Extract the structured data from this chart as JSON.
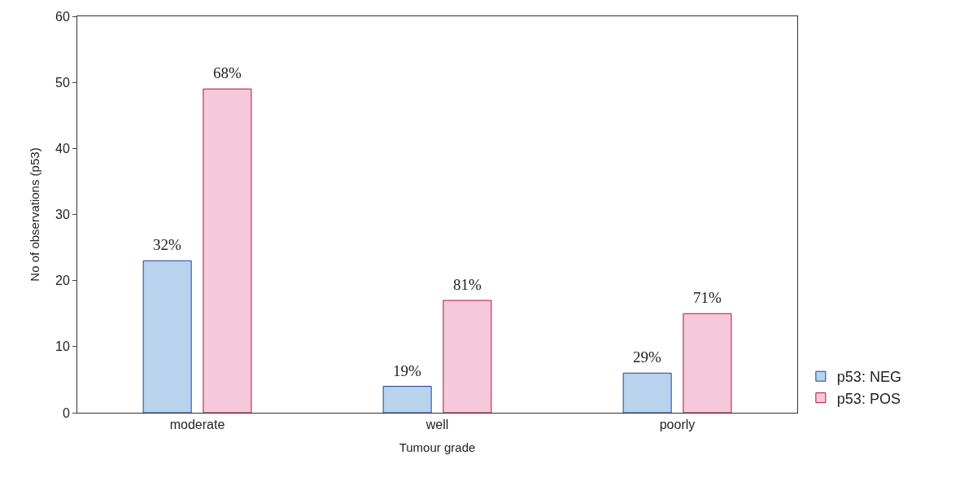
{
  "chart_data": {
    "type": "bar",
    "xlabel": "Tumour grade",
    "ylabel": "No of observations (p53)",
    "categories": [
      "moderate",
      "well",
      "poorly"
    ],
    "series": [
      {
        "name": "p53: NEG",
        "color": "#b9d3ee",
        "values": [
          23,
          4,
          6
        ]
      },
      {
        "name": "p53: POS",
        "color": "#f6c9da",
        "values": [
          49,
          17,
          15
        ]
      }
    ],
    "annotations": [
      "32%",
      "68%",
      "19%",
      "81%",
      "29%",
      "71%"
    ],
    "ylim": [
      0,
      60
    ],
    "yticks": [
      0,
      10,
      20,
      30,
      40,
      50,
      60
    ],
    "legend": "bottom right"
  }
}
